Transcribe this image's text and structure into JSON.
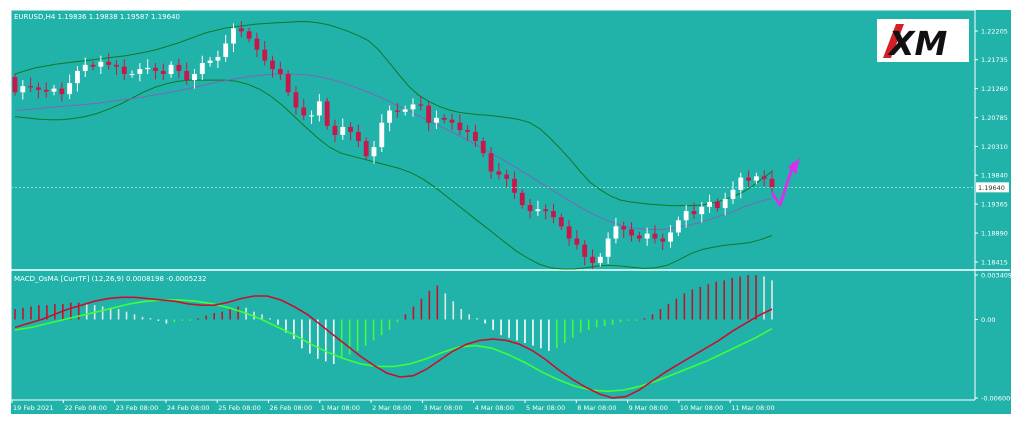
{
  "window": {
    "title": "EURUSD,H4  1.19836 1.19838 1.19587 1.19640",
    "indicator_title": "MACD_OsMA [CurrTF] (12,26,9) 0.0008198 -0.0005232",
    "logo_text": "XM"
  },
  "colors": {
    "background": "#21b3aa",
    "bull_candle": "#ffffff",
    "bear_candle": "#c8174a",
    "bollinger": "#0f7a22",
    "ma": "#7a67b8",
    "macd_line": "#c8102e",
    "signal_line": "#3cff3c",
    "forecast_arrow": "#d433e8"
  },
  "chart_data": [
    {
      "type": "candlestick",
      "symbol": "EURUSD",
      "timeframe": "H4",
      "ohlc": {
        "open": 1.19836,
        "high": 1.19838,
        "low": 1.19587,
        "close": 1.1964
      },
      "current_price_label": "1.19640",
      "y_ticks": [
        "1.22205",
        "1.21735",
        "1.21260",
        "1.20785",
        "1.20310",
        "1.19840",
        "1.19365",
        "1.18890",
        "1.18415"
      ],
      "ylim": [
        1.183,
        1.2255
      ],
      "x_ticks": [
        "19 Feb 2021",
        "22 Feb 08:00",
        "23 Feb 08:00",
        "24 Feb 08:00",
        "25 Feb 08:00",
        "26 Feb 08:00",
        "1 Mar 08:00",
        "2 Mar 08:00",
        "3 Mar 08:00",
        "4 Mar 08:00",
        "5 Mar 08:00",
        "8 Mar 08:00",
        "9 Mar 08:00",
        "10 Mar 08:00",
        "11 Mar 08:00"
      ],
      "closes": [
        1.212,
        1.213,
        1.2128,
        1.2124,
        1.2121,
        1.2126,
        1.2117,
        1.2135,
        1.2155,
        1.2165,
        1.2162,
        1.217,
        1.2165,
        1.2162,
        1.215,
        1.215,
        1.2158,
        1.216,
        1.2155,
        1.215,
        1.2165,
        1.2155,
        1.214,
        1.215,
        1.2168,
        1.2172,
        1.2178,
        1.22,
        1.2225,
        1.222,
        1.2208,
        1.219,
        1.2172,
        1.2158,
        1.215,
        1.212,
        1.2095,
        1.2082,
        1.2082,
        1.2105,
        1.2065,
        1.205,
        1.2063,
        1.2055,
        1.204,
        1.2015,
        1.203,
        1.207,
        1.209,
        1.2088,
        1.2092,
        1.21,
        1.2098,
        1.207,
        1.2078,
        1.2075,
        1.207,
        1.2058,
        1.2055,
        1.204,
        1.202,
        1.199,
        1.1985,
        1.1978,
        1.1955,
        1.1935,
        1.1925,
        1.1928,
        1.1925,
        1.1915,
        1.19,
        1.188,
        1.187,
        1.185,
        1.184,
        1.185,
        1.188,
        1.19,
        1.1895,
        1.1885,
        1.188,
        1.1888,
        1.188,
        1.1875,
        1.189,
        1.191,
        1.1925,
        1.192,
        1.1932,
        1.194,
        1.193,
        1.1945,
        1.196,
        1.198,
        1.1975,
        1.1982,
        1.1978,
        1.1964
      ],
      "bollinger_upper": [
        1.215,
        1.2155,
        1.216,
        1.2163,
        1.2166,
        1.2168,
        1.217,
        1.2172,
        1.2174,
        1.2176,
        1.2178,
        1.218,
        1.2183,
        1.2186,
        1.219,
        1.2195,
        1.22,
        1.2206,
        1.2212,
        1.2218,
        1.2222,
        1.2226,
        1.2228,
        1.223,
        1.2232,
        1.2233,
        1.2234,
        1.2235,
        1.2236,
        1.2236,
        1.2234,
        1.2231,
        1.2226,
        1.222,
        1.2213,
        1.2205,
        1.219,
        1.217,
        1.215,
        1.213,
        1.2115,
        1.2105,
        1.2097,
        1.2091,
        1.2087,
        1.2085,
        1.2083,
        1.2082,
        1.208,
        1.2078,
        1.2075,
        1.207,
        1.206,
        1.2045,
        1.2028,
        1.201,
        1.199,
        1.1972,
        1.196,
        1.195,
        1.1943,
        1.194,
        1.1938,
        1.1936,
        1.1935,
        1.1934,
        1.1934,
        1.1934,
        1.1935,
        1.1938,
        1.1942,
        1.1948,
        1.1955,
        1.1965,
        1.1978,
        1.199
      ],
      "bollinger_mid": [
        1.209,
        1.2092,
        1.2094,
        1.2096,
        1.2098,
        1.21,
        1.2102,
        1.2105,
        1.2108,
        1.2111,
        1.2115,
        1.2119,
        1.2123,
        1.2128,
        1.2133,
        1.2138,
        1.2142,
        1.2146,
        1.2148,
        1.215,
        1.215,
        1.2149,
        1.2146,
        1.2141,
        1.2134,
        1.2126,
        1.2117,
        1.2107,
        1.2096,
        1.2085,
        1.2074,
        1.2063,
        1.2052,
        1.204,
        1.2028,
        1.2015,
        1.2002,
        1.1988,
        1.1974,
        1.196,
        1.1946,
        1.1932,
        1.192,
        1.191,
        1.1902,
        1.1897,
        1.1895,
        1.1895,
        1.1898,
        1.1902,
        1.1908,
        1.1915,
        1.1923,
        1.1932,
        1.194,
        1.1946
      ],
      "bollinger_lower": [
        1.208,
        1.2078,
        1.2076,
        1.2075,
        1.2075,
        1.2077,
        1.208,
        1.2085,
        1.2092,
        1.21,
        1.211,
        1.212,
        1.2128,
        1.2134,
        1.2138,
        1.214,
        1.214,
        1.214,
        1.214,
        1.2138,
        1.2133,
        1.2125,
        1.2113,
        1.2098,
        1.208,
        1.2062,
        1.2045,
        1.203,
        1.202,
        1.2015,
        1.201,
        1.2005,
        1.2,
        1.1995,
        1.1988,
        1.1978,
        1.1965,
        1.195,
        1.1935,
        1.192,
        1.1905,
        1.189,
        1.1875,
        1.186,
        1.1848,
        1.1838,
        1.1832,
        1.183,
        1.183,
        1.1832,
        1.1835,
        1.1836,
        1.1835,
        1.1833,
        1.1831,
        1.1832,
        1.1836,
        1.1845,
        1.1855,
        1.1862,
        1.1866,
        1.1869,
        1.1871,
        1.1873,
        1.1878,
        1.1885
      ]
    },
    {
      "type": "macd",
      "title": "MACD_OsMA [CurrTF] (12,26,9)",
      "macd": 0.0008198,
      "osma": -0.0005232,
      "y_ticks": [
        "0.0034091",
        "0.00",
        "-0.0060094"
      ],
      "ylim": [
        -0.0060094,
        0.0034091
      ],
      "histogram": [
        0.0008,
        0.0009,
        0.001,
        0.0011,
        0.0011,
        0.0012,
        0.0012,
        0.0013,
        0.0013,
        0.0012,
        0.0011,
        0.001,
        0.0009,
        0.0008,
        0.0006,
        0.0004,
        0.0002,
        0.0001,
        -0.0001,
        -0.0003,
        -0.0002,
        -0.0001,
        -0.0001,
        0.0001,
        0.0003,
        0.0005,
        0.0006,
        0.0008,
        0.001,
        0.0009,
        0.0006,
        0.0004,
        0.0001,
        -0.0004,
        -0.001,
        -0.0015,
        -0.0022,
        -0.0026,
        -0.003,
        -0.0032,
        -0.0034,
        -0.003,
        -0.0027,
        -0.0024,
        -0.002,
        -0.0016,
        -0.0012,
        -0.0008,
        -0.0002,
        0.0004,
        0.001,
        0.0016,
        0.0022,
        0.0026,
        0.002,
        0.0014,
        0.0008,
        0.0004,
        0.0001,
        -0.0003,
        -0.0008,
        -0.0012,
        -0.0014,
        -0.0016,
        -0.0018,
        -0.002,
        -0.0022,
        -0.0024,
        -0.0022,
        -0.0018,
        -0.0014,
        -0.001,
        -0.0008,
        -0.0006,
        -0.0005,
        -0.0004,
        -0.0002,
        -0.0001,
        -0.0001,
        0.0001,
        0.0004,
        0.0008,
        0.0012,
        0.0016,
        0.002,
        0.0023,
        0.0025,
        0.0027,
        0.0029,
        0.003,
        0.0032,
        0.0033,
        0.0034,
        0.0034,
        0.0033,
        0.003
      ],
      "macd_line": [
        -0.0006,
        -0.0003,
        0.0,
        0.0004,
        0.0008,
        0.0011,
        0.0014,
        0.0016,
        0.0017,
        0.0017,
        0.0016,
        0.0015,
        0.0014,
        0.0012,
        0.0011,
        0.0011,
        0.0013,
        0.0016,
        0.0018,
        0.0018,
        0.0015,
        0.001,
        0.0004,
        -0.0004,
        -0.0012,
        -0.002,
        -0.0028,
        -0.0035,
        -0.0041,
        -0.0044,
        -0.0043,
        -0.0038,
        -0.0031,
        -0.0024,
        -0.0019,
        -0.0016,
        -0.0015,
        -0.0016,
        -0.0019,
        -0.0024,
        -0.0031,
        -0.0039,
        -0.0046,
        -0.0052,
        -0.0057,
        -0.006,
        -0.0059,
        -0.0054,
        -0.0047,
        -0.004,
        -0.0034,
        -0.0028,
        -0.0022,
        -0.0016,
        -0.0009,
        -0.0003,
        0.0003,
        0.0008
      ],
      "signal_line": [
        -0.0008,
        -0.0006,
        -0.0003,
        0.0,
        0.0003,
        0.0006,
        0.0009,
        0.0012,
        0.0014,
        0.0015,
        0.0015,
        0.0014,
        0.0012,
        0.0009,
        0.0005,
        0.0,
        -0.0006,
        -0.0012,
        -0.0019,
        -0.0025,
        -0.003,
        -0.0034,
        -0.0036,
        -0.0036,
        -0.0034,
        -0.003,
        -0.0025,
        -0.0021,
        -0.002,
        -0.0022,
        -0.0027,
        -0.0033,
        -0.004,
        -0.0046,
        -0.0051,
        -0.0054,
        -0.0055,
        -0.0054,
        -0.0051,
        -0.0047,
        -0.0042,
        -0.0037,
        -0.0032,
        -0.0026,
        -0.002,
        -0.0014,
        -0.0007
      ]
    }
  ]
}
